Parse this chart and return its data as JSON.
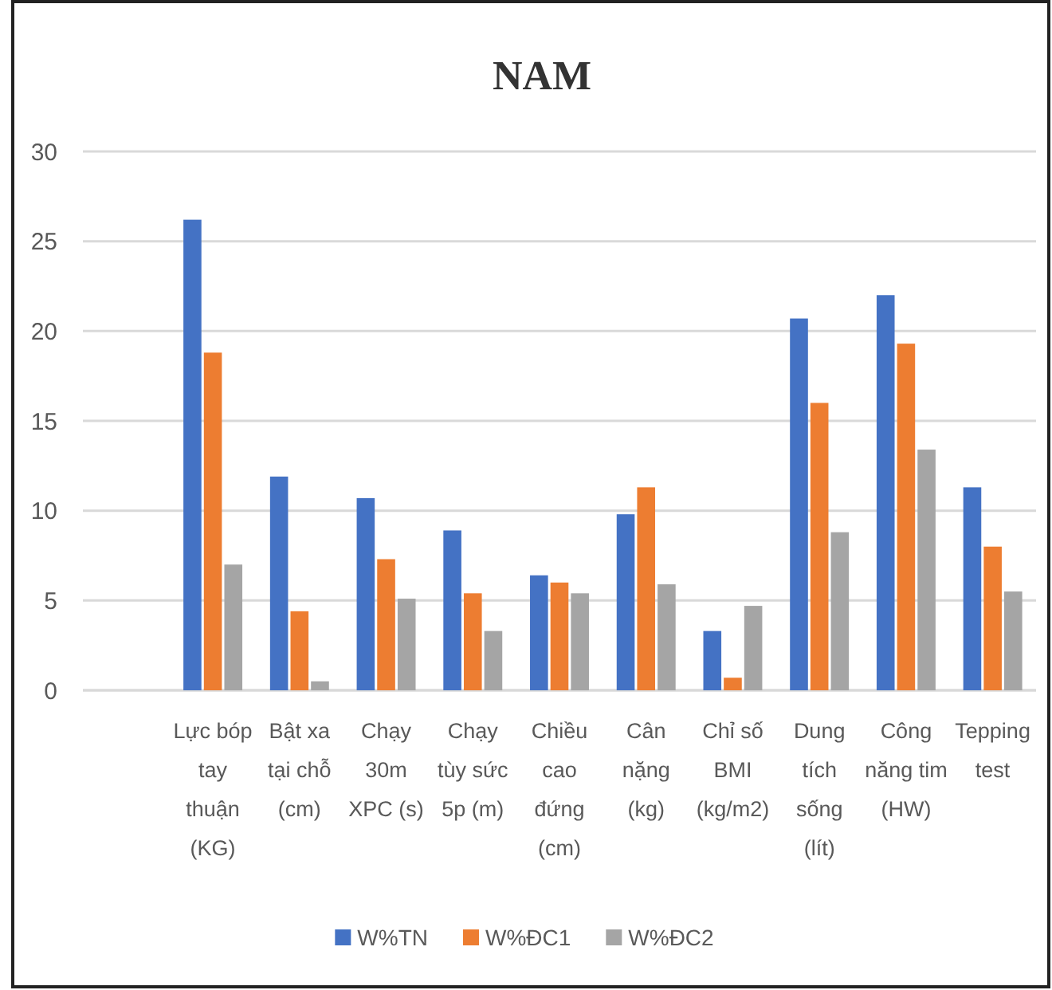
{
  "chart_data": {
    "type": "bar",
    "title": "NAM",
    "categories": [
      null,
      "Lực bóp tay thuận (KG)",
      "Bật xa tại chỗ (cm)",
      "Chạy 30m XPC (s)",
      "Chạy tùy sức 5p (m)",
      "Chiều cao đứng (cm)",
      "Cân nặng (kg)",
      "Chỉ số BMI (kg/m2)",
      "Dung tích sống (lít)",
      "Công năng tim (HW)",
      "Tepping test"
    ],
    "series": [
      {
        "name": "W%TN",
        "color": "#4472c4",
        "values": [
          null,
          26.2,
          11.9,
          10.7,
          8.9,
          6.4,
          9.8,
          3.3,
          20.7,
          22.0,
          11.3
        ]
      },
      {
        "name": "W%ĐC1",
        "color": "#ed7d31",
        "values": [
          null,
          18.8,
          4.4,
          7.3,
          5.4,
          6.0,
          11.3,
          0.7,
          16.0,
          19.3,
          8.0
        ]
      },
      {
        "name": "W%ĐC2",
        "color": "#a5a5a5",
        "values": [
          null,
          7.0,
          0.5,
          5.1,
          3.3,
          5.4,
          5.9,
          4.7,
          8.8,
          13.4,
          5.5
        ]
      }
    ],
    "ylim": [
      0,
      30
    ],
    "yticks": [
      0,
      5,
      10,
      15,
      20,
      25,
      30
    ],
    "grid": "y",
    "legend": "bottom"
  }
}
